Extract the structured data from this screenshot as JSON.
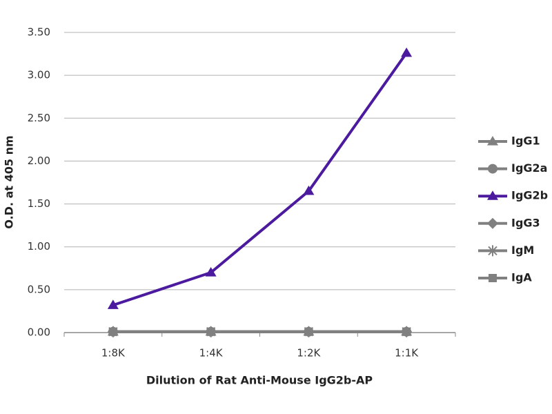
{
  "chart_data": {
    "type": "line",
    "x_label": "Dilution of Rat Anti-Mouse IgG2b-AP",
    "y_label": "O.D. at 405 nm",
    "categories": [
      "1:8K",
      "1:4K",
      "1:2K",
      "1:1K"
    ],
    "ylim": [
      0,
      3.5
    ],
    "yticks": [
      {
        "value": 0,
        "label": "0.00"
      },
      {
        "value": 0.5,
        "label": "0.50"
      },
      {
        "value": 1,
        "label": "1.00"
      },
      {
        "value": 1.5,
        "label": "1.50"
      },
      {
        "value": 2,
        "label": "2.00"
      },
      {
        "value": 2.5,
        "label": "2.50"
      },
      {
        "value": 3,
        "label": "3.00"
      },
      {
        "value": 3.5,
        "label": "3.50"
      }
    ],
    "grid": true,
    "legend": "right",
    "series": [
      {
        "name": "IgG1",
        "color": "#808080",
        "marker": "triangle",
        "values": [
          0.01,
          0.01,
          0.01,
          0.01
        ]
      },
      {
        "name": "IgG2a",
        "color": "#808080",
        "marker": "circle",
        "values": [
          0.01,
          0.01,
          0.01,
          0.01
        ]
      },
      {
        "name": "IgG2b",
        "color": "#4b1a9e",
        "marker": "triangle",
        "values": [
          0.32,
          0.7,
          1.65,
          3.26
        ]
      },
      {
        "name": "IgG3",
        "color": "#808080",
        "marker": "diamond",
        "values": [
          0.01,
          0.01,
          0.01,
          0.01
        ]
      },
      {
        "name": "IgM",
        "color": "#808080",
        "marker": "asterisk",
        "values": [
          0.01,
          0.01,
          0.01,
          0.01
        ]
      },
      {
        "name": "IgA",
        "color": "#808080",
        "marker": "square",
        "values": [
          0.01,
          0.01,
          0.01,
          0.01
        ]
      }
    ]
  }
}
